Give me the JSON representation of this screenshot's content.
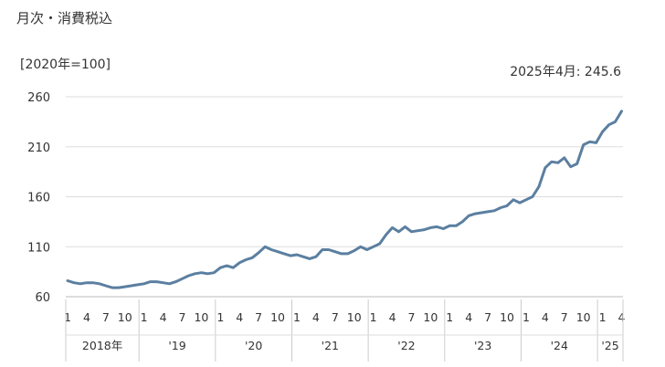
{
  "header": {
    "title": "月次・消費税込",
    "unit": "[2020年=100]",
    "latest_label": "2025年4月: 245.6"
  },
  "chart_data": {
    "type": "line",
    "title": "月次・消費税込",
    "ylabel": "[2020年=100]",
    "ylim": [
      60,
      260
    ],
    "yticks": [
      60,
      110,
      160,
      210,
      260
    ],
    "grid": true,
    "line_color": "#5b7fa0",
    "month_ticks": [
      "1",
      "4",
      "7",
      "10",
      "1",
      "4",
      "7",
      "10",
      "1",
      "4",
      "7",
      "10",
      "1",
      "4",
      "7",
      "10",
      "1",
      "4",
      "7",
      "10",
      "1",
      "4",
      "7",
      "10",
      "1",
      "4",
      "7",
      "10",
      "1",
      "4"
    ],
    "year_labels": [
      "2018年",
      "'19",
      "'20",
      "'21",
      "'22",
      "'23",
      "'24",
      "'25"
    ],
    "series": [
      {
        "x": [
          "2018-01",
          "2018-02",
          "2018-03",
          "2018-04",
          "2018-05",
          "2018-06",
          "2018-07",
          "2018-08",
          "2018-09",
          "2018-10",
          "2018-11",
          "2018-12",
          "2019-01",
          "2019-02",
          "2019-03",
          "2019-04",
          "2019-05",
          "2019-06",
          "2019-07",
          "2019-08",
          "2019-09",
          "2019-10",
          "2019-11",
          "2019-12",
          "2020-01",
          "2020-02",
          "2020-03",
          "2020-04",
          "2020-05",
          "2020-06",
          "2020-07",
          "2020-08",
          "2020-09",
          "2020-10",
          "2020-11",
          "2020-12",
          "2021-01",
          "2021-02",
          "2021-03",
          "2021-04",
          "2021-05",
          "2021-06",
          "2021-07",
          "2021-08",
          "2021-09",
          "2021-10",
          "2021-11",
          "2021-12",
          "2022-01",
          "2022-02",
          "2022-03",
          "2022-04",
          "2022-05",
          "2022-06",
          "2022-07",
          "2022-08",
          "2022-09",
          "2022-10",
          "2022-11",
          "2022-12",
          "2023-01",
          "2023-02",
          "2023-03",
          "2023-04",
          "2023-05",
          "2023-06",
          "2023-07",
          "2023-08",
          "2023-09",
          "2023-10",
          "2023-11",
          "2023-12",
          "2024-01",
          "2024-02",
          "2024-03",
          "2024-04",
          "2024-05",
          "2024-06",
          "2024-07",
          "2024-08",
          "2024-09",
          "2024-10",
          "2024-11",
          "2024-12",
          "2025-01",
          "2025-02",
          "2025-03",
          "2025-04"
        ],
        "values": [
          76,
          74,
          73,
          74,
          74,
          73,
          71,
          69,
          69,
          70,
          71,
          72,
          73,
          75,
          75,
          74,
          73,
          75,
          78,
          81,
          83,
          84,
          83,
          84,
          89,
          91,
          89,
          94,
          97,
          99,
          104,
          110,
          107,
          105,
          103,
          101,
          102,
          100,
          98,
          100,
          107,
          107,
          105,
          103,
          103,
          106,
          110,
          107,
          110,
          113,
          122,
          129,
          125,
          130,
          125,
          126,
          127,
          129,
          130,
          128,
          131,
          131,
          135,
          141,
          143,
          144,
          145,
          146,
          149,
          151,
          157,
          154,
          157,
          160,
          170,
          189,
          195,
          194,
          199,
          190,
          193,
          212,
          215,
          214,
          225,
          232,
          235,
          245.6
        ]
      }
    ]
  }
}
